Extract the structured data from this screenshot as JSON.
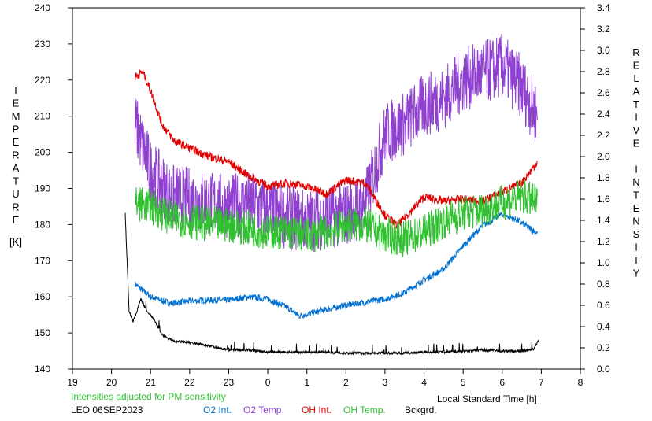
{
  "chart_data": {
    "type": "line",
    "xlabel": "Local Standard Time [h]",
    "ylabel_left": "TEMPERATURE",
    "ylabel_left_unit": "[K]",
    "ylabel_right": "RELATIVE INTENSITY",
    "x_ticks": [
      "19",
      "20",
      "21",
      "22",
      "23",
      "0",
      "1",
      "2",
      "3",
      "4",
      "5",
      "6",
      "7",
      "8"
    ],
    "xlim": [
      19,
      32
    ],
    "ylim_left": [
      140,
      240
    ],
    "ylim_right": [
      0.0,
      3.4
    ],
    "yticks_left": [
      140,
      150,
      160,
      170,
      180,
      190,
      200,
      210,
      220,
      230,
      240
    ],
    "yticks_right": [
      "0.0",
      "0.2",
      "0.4",
      "0.6",
      "0.8",
      "1.0",
      "1.2",
      "1.4",
      "1.6",
      "1.8",
      "2.0",
      "2.2",
      "2.4",
      "2.6",
      "2.8",
      "3.0",
      "3.2",
      "3.4"
    ],
    "grid": false,
    "note": "Intensities adjusted for PM sensitivity",
    "station": "LEO 06SEP2023",
    "series": [
      {
        "name": "O2 Int.",
        "axis": "right",
        "color": "#0070d0",
        "x": [
          20.6,
          21.0,
          21.5,
          22.0,
          22.5,
          23.0,
          23.5,
          24.0,
          24.5,
          24.8,
          25.5,
          26.0,
          26.5,
          27.0,
          27.5,
          28.0,
          28.5,
          29.0,
          29.5,
          30.0,
          30.4,
          30.9
        ],
        "values": [
          0.8,
          0.68,
          0.62,
          0.64,
          0.65,
          0.65,
          0.68,
          0.66,
          0.58,
          0.5,
          0.56,
          0.6,
          0.63,
          0.66,
          0.72,
          0.84,
          0.94,
          1.16,
          1.35,
          1.46,
          1.4,
          1.28
        ]
      },
      {
        "name": "O2 Temp.",
        "axis": "left",
        "color": "#9040d0",
        "x": [
          20.6,
          21.0,
          21.5,
          22.0,
          22.5,
          23.0,
          23.5,
          24.0,
          24.5,
          25.0,
          25.5,
          26.0,
          26.5,
          27.0,
          27.5,
          28.0,
          28.5,
          29.0,
          29.5,
          30.0,
          30.5,
          30.9
        ],
        "values": [
          208,
          195,
          188,
          187,
          186,
          185,
          186,
          184,
          182,
          181,
          182,
          183,
          186,
          205,
          208,
          213,
          215,
          220,
          222,
          224,
          218,
          210
        ]
      },
      {
        "name": "OH Int.",
        "axis": "right",
        "color": "#e00000",
        "x": [
          20.6,
          20.8,
          21.0,
          21.3,
          21.6,
          22.0,
          22.5,
          23.0,
          23.5,
          24.0,
          24.5,
          25.0,
          25.5,
          26.0,
          26.5,
          27.0,
          27.3,
          27.5,
          28.0,
          28.5,
          29.0,
          29.5,
          30.0,
          30.5,
          30.9
        ],
        "values": [
          2.75,
          2.8,
          2.62,
          2.3,
          2.15,
          2.08,
          2.0,
          1.95,
          1.82,
          1.72,
          1.75,
          1.72,
          1.65,
          1.78,
          1.75,
          1.45,
          1.35,
          1.42,
          1.62,
          1.58,
          1.6,
          1.58,
          1.67,
          1.75,
          1.95
        ]
      },
      {
        "name": "OH Temp.",
        "axis": "left",
        "color": "#30c030",
        "x": [
          20.6,
          21.0,
          21.5,
          22.0,
          22.5,
          23.0,
          23.5,
          24.0,
          24.5,
          25.0,
          25.5,
          26.0,
          26.5,
          27.0,
          27.5,
          28.0,
          28.5,
          29.0,
          29.5,
          30.0,
          30.5,
          30.9
        ],
        "values": [
          186,
          185,
          182,
          181,
          180,
          180,
          179,
          178,
          178,
          177,
          178,
          180,
          180,
          177,
          176,
          178,
          181,
          183,
          184,
          186,
          188,
          186
        ]
      },
      {
        "name": "Bckgrd.",
        "axis": "right",
        "color": "#000000",
        "x": [
          20.35,
          20.45,
          20.55,
          20.65,
          20.75,
          20.9,
          21.1,
          21.3,
          21.6,
          22.0,
          22.5,
          23.0,
          23.5,
          24.0,
          24.5,
          25.0,
          25.5,
          26.0,
          26.5,
          27.0,
          27.5,
          28.0,
          28.5,
          29.0,
          29.5,
          30.0,
          30.5,
          30.8,
          30.95
        ],
        "values": [
          1.46,
          0.55,
          0.45,
          0.54,
          0.66,
          0.55,
          0.46,
          0.32,
          0.26,
          0.25,
          0.22,
          0.18,
          0.18,
          0.16,
          0.16,
          0.16,
          0.16,
          0.15,
          0.15,
          0.15,
          0.15,
          0.16,
          0.16,
          0.17,
          0.18,
          0.17,
          0.17,
          0.18,
          0.28
        ]
      }
    ]
  }
}
